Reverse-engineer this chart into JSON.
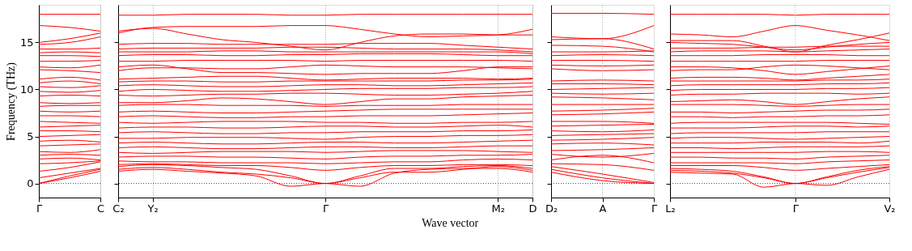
{
  "chart_data": [
    {
      "type": "line",
      "ylabel": "Frequency (THz)",
      "categories": [
        "Γ",
        null,
        "C"
      ],
      "ylim": [
        -1.5,
        19
      ],
      "yticks": [
        0,
        5,
        10,
        15
      ],
      "grid": "x",
      "ref_lines": [
        {
          "axis": "y",
          "value": 0,
          "color": "#0000ff",
          "line_style": "dotted"
        }
      ],
      "series": [
        {
          "color": "#ff0000",
          "values": [
            0,
            0.6,
            1.3
          ]
        },
        {
          "color": "#ff0000",
          "values": [
            0,
            0.8,
            1.5
          ]
        },
        {
          "color": "#ff0000",
          "values": [
            0.6,
            1.1,
            1.6
          ]
        },
        {
          "color": "#ff0000",
          "values": [
            1.3,
            1.7,
            2.3
          ]
        },
        {
          "color": "#ff0000",
          "values": [
            2.1,
            2.2,
            2.4
          ]
        },
        {
          "color": "#ff0000",
          "values": [
            2.6,
            2.7,
            2.5
          ]
        },
        {
          "color": "#ff0000",
          "values": [
            3.0,
            3.1,
            3.0
          ]
        },
        {
          "color": "#ff0000",
          "values": [
            3.4,
            3.3,
            3.6
          ]
        },
        {
          "color": "#ff0000",
          "values": [
            4.0,
            4.1,
            4.2
          ]
        },
        {
          "color": "#ff0000",
          "values": [
            4.5,
            4.6,
            4.4
          ]
        },
        {
          "color": "#ff0000",
          "values": [
            5.0,
            5.1,
            5.2
          ]
        },
        {
          "color": "#ff0000",
          "values": [
            5.6,
            5.6,
            5.5
          ]
        },
        {
          "color": "#ff0000",
          "values": [
            6.0,
            6.1,
            6.2
          ]
        },
        {
          "color": "#ff0000",
          "values": [
            6.6,
            6.5,
            6.4
          ]
        },
        {
          "color": "#ff0000",
          "values": [
            7.2,
            7.2,
            7.1
          ]
        },
        {
          "color": "#ff0000",
          "values": [
            7.7,
            7.6,
            7.7
          ]
        },
        {
          "color": "#ff0000",
          "values": [
            8.2,
            8.3,
            8.3
          ]
        },
        {
          "color": "#ff0000",
          "values": [
            8.6,
            8.5,
            8.6
          ]
        },
        {
          "color": "#ff0000",
          "values": [
            9.3,
            9.4,
            9.3
          ]
        },
        {
          "color": "#ff0000",
          "values": [
            9.8,
            9.7,
            9.9
          ]
        },
        {
          "color": "#ff0000",
          "values": [
            10.3,
            10.2,
            10.4
          ]
        },
        {
          "color": "#ff0000",
          "values": [
            10.7,
            10.9,
            10.6
          ]
        },
        {
          "color": "#ff0000",
          "values": [
            11.1,
            11.3,
            11.0
          ]
        },
        {
          "color": "#ff0000",
          "values": [
            12.1,
            12.0,
            11.8
          ]
        },
        {
          "color": "#ff0000",
          "values": [
            12.4,
            12.3,
            12.6
          ]
        },
        {
          "color": "#ff0000",
          "values": [
            13.0,
            13.0,
            13.1
          ]
        },
        {
          "color": "#ff0000",
          "values": [
            13.6,
            13.6,
            13.5
          ]
        },
        {
          "color": "#ff0000",
          "values": [
            13.9,
            14.0,
            13.9
          ]
        },
        {
          "color": "#ff0000",
          "values": [
            14.3,
            14.3,
            14.4
          ]
        },
        {
          "color": "#ff0000",
          "values": [
            14.8,
            15.0,
            15.6
          ]
        },
        {
          "color": "#ff0000",
          "values": [
            15.0,
            15.4,
            16.0
          ]
        },
        {
          "color": "#ff0000",
          "values": [
            16.8,
            16.6,
            16.2
          ]
        },
        {
          "color": "#ff0000",
          "values": [
            18.0,
            18.0,
            18.0
          ]
        }
      ]
    },
    {
      "type": "line",
      "xlabel": "Wave vector",
      "categories": [
        "C₂",
        "Y₂",
        null,
        null,
        null,
        null,
        "Γ",
        null,
        null,
        null,
        null,
        "M₂",
        "D"
      ],
      "ylim": [
        -1.5,
        19
      ],
      "yticks": [
        0,
        5,
        10,
        15
      ],
      "tick_labels": "x",
      "grid": "x",
      "ref_lines": [
        {
          "axis": "y",
          "value": 0,
          "color": "#0000ff",
          "line_style": "dotted"
        }
      ],
      "series": [
        {
          "color": "#ff0000",
          "values": [
            1.3,
            1.5,
            1.3,
            1.1,
            0.8,
            -0.3,
            0,
            -0.3,
            1.1,
            1.5,
            1.6,
            1.6,
            1.2
          ]
        },
        {
          "color": "#ff0000",
          "values": [
            1.5,
            1.7,
            1.5,
            1.2,
            1.0,
            0.6,
            0,
            0.6,
            1.2,
            1.2,
            1.5,
            1.8,
            1.4
          ]
        },
        {
          "color": "#ff0000",
          "values": [
            1.8,
            2.0,
            1.9,
            1.7,
            1.5,
            0.8,
            0,
            0.8,
            1.6,
            1.6,
            1.8,
            1.9,
            1.6
          ]
        },
        {
          "color": "#ff0000",
          "values": [
            2.0,
            2.1,
            2.0,
            1.9,
            1.9,
            1.7,
            1.4,
            1.7,
            1.9,
            1.9,
            2.0,
            2.0,
            1.9
          ]
        },
        {
          "color": "#ff0000",
          "values": [
            2.4,
            2.3,
            2.3,
            2.2,
            2.2,
            2.2,
            2.1,
            2.2,
            2.3,
            2.3,
            2.5,
            2.6,
            2.5
          ]
        },
        {
          "color": "#ff0000",
          "values": [
            2.8,
            2.9,
            2.9,
            2.8,
            2.8,
            2.7,
            2.6,
            2.8,
            2.9,
            2.9,
            3.0,
            3.0,
            3.1
          ]
        },
        {
          "color": "#ff0000",
          "values": [
            3.3,
            3.2,
            3.3,
            3.4,
            3.4,
            3.4,
            3.3,
            3.4,
            3.5,
            3.5,
            3.5,
            3.4,
            3.3
          ]
        },
        {
          "color": "#ff0000",
          "values": [
            3.8,
            3.9,
            3.8,
            3.7,
            3.7,
            3.8,
            3.9,
            3.9,
            3.8,
            3.8,
            3.9,
            4.0,
            4.0
          ]
        },
        {
          "color": "#ff0000",
          "values": [
            4.3,
            4.4,
            4.3,
            4.2,
            4.2,
            4.3,
            4.4,
            4.4,
            4.3,
            4.3,
            4.4,
            4.5,
            4.6
          ]
        },
        {
          "color": "#ff0000",
          "values": [
            4.8,
            4.8,
            4.9,
            4.9,
            4.9,
            4.8,
            4.7,
            4.9,
            5.0,
            5.0,
            5.1,
            5.1,
            5.2
          ]
        },
        {
          "color": "#ff0000",
          "values": [
            5.4,
            5.5,
            5.4,
            5.3,
            5.3,
            5.4,
            5.4,
            5.5,
            5.5,
            5.5,
            5.6,
            5.6,
            5.7
          ]
        },
        {
          "color": "#ff0000",
          "values": [
            5.9,
            6.0,
            6.0,
            5.9,
            5.9,
            6.0,
            6.1,
            6.1,
            6.0,
            6.0,
            6.1,
            6.2,
            6.0
          ]
        },
        {
          "color": "#ff0000",
          "values": [
            6.5,
            6.4,
            6.5,
            6.6,
            6.6,
            6.6,
            6.5,
            6.5,
            6.4,
            6.4,
            6.5,
            6.5,
            6.6
          ]
        },
        {
          "color": "#ff0000",
          "values": [
            7.1,
            7.2,
            7.1,
            7.0,
            7.0,
            7.1,
            7.1,
            7.2,
            7.2,
            7.2,
            7.3,
            7.4,
            7.5
          ]
        },
        {
          "color": "#ff0000",
          "values": [
            7.6,
            7.7,
            7.6,
            7.5,
            7.5,
            7.6,
            7.7,
            7.8,
            7.9,
            7.9,
            7.9,
            7.9,
            7.9
          ]
        },
        {
          "color": "#ff0000",
          "values": [
            8.3,
            8.4,
            8.4,
            8.3,
            8.3,
            8.3,
            8.2,
            8.3,
            8.3,
            8.3,
            8.4,
            8.4,
            8.4
          ]
        },
        {
          "color": "#ff0000",
          "values": [
            8.6,
            8.6,
            8.8,
            9.1,
            9.0,
            8.7,
            8.4,
            8.7,
            9.0,
            9.0,
            9.2,
            9.3,
            9.4
          ]
        },
        {
          "color": "#ff0000",
          "values": [
            9.4,
            9.3,
            9.4,
            9.5,
            9.5,
            9.6,
            9.6,
            9.5,
            9.4,
            9.4,
            9.5,
            9.6,
            9.8
          ]
        },
        {
          "color": "#ff0000",
          "values": [
            9.8,
            10.0,
            9.9,
            9.8,
            9.8,
            9.9,
            10.0,
            10.1,
            10.1,
            10.1,
            10.2,
            10.2,
            10.3
          ]
        },
        {
          "color": "#ff0000",
          "values": [
            10.4,
            10.5,
            10.4,
            10.3,
            10.3,
            10.4,
            10.5,
            10.5,
            10.4,
            10.4,
            10.5,
            10.6,
            10.7
          ]
        },
        {
          "color": "#ff0000",
          "values": [
            10.8,
            10.9,
            10.9,
            10.8,
            10.8,
            10.9,
            10.9,
            10.9,
            10.9,
            10.9,
            11.0,
            11.0,
            11.1
          ]
        },
        {
          "color": "#ff0000",
          "values": [
            11.1,
            11.2,
            11.3,
            11.4,
            11.4,
            11.2,
            11.0,
            11.1,
            11.2,
            11.2,
            11.2,
            11.1,
            11.2
          ]
        },
        {
          "color": "#ff0000",
          "values": [
            12.0,
            12.3,
            12.3,
            12.2,
            12.2,
            12.4,
            12.6,
            12.5,
            12.4,
            12.4,
            12.4,
            12.3,
            12.2
          ]
        },
        {
          "color": "#ff0000",
          "values": [
            12.4,
            12.6,
            12.2,
            11.8,
            11.8,
            11.7,
            11.6,
            11.7,
            11.7,
            11.7,
            12.0,
            12.4,
            12.4
          ]
        },
        {
          "color": "#ff0000",
          "values": [
            13.0,
            13.0,
            13.1,
            13.1,
            13.1,
            13.1,
            13.0,
            13.1,
            13.1,
            13.1,
            13.1,
            13.1,
            13.0
          ]
        },
        {
          "color": "#ff0000",
          "values": [
            13.6,
            13.7,
            13.7,
            13.6,
            13.6,
            13.7,
            13.7,
            13.8,
            13.8,
            13.8,
            13.7,
            13.6,
            13.6
          ]
        },
        {
          "color": "#ff0000",
          "values": [
            14.0,
            14.0,
            14.0,
            14.1,
            14.1,
            14.0,
            14.0,
            14.0,
            14.0,
            14.0,
            14.0,
            14.0,
            13.8
          ]
        },
        {
          "color": "#ff0000",
          "values": [
            14.3,
            14.4,
            14.4,
            14.4,
            14.4,
            14.5,
            14.5,
            14.4,
            14.3,
            14.3,
            14.3,
            14.2,
            14.0
          ]
        },
        {
          "color": "#ff0000",
          "values": [
            14.8,
            14.9,
            14.9,
            14.8,
            14.8,
            14.8,
            14.8,
            14.9,
            14.9,
            14.9,
            14.7,
            14.5,
            14.3
          ]
        },
        {
          "color": "#ff0000",
          "values": [
            16.2,
            16.5,
            15.9,
            15.3,
            15.0,
            14.6,
            14.2,
            15.0,
            15.7,
            15.9,
            15.9,
            15.8,
            15.8
          ]
        },
        {
          "color": "#ff0000",
          "values": [
            16.0,
            16.6,
            16.7,
            16.7,
            16.7,
            16.8,
            16.8,
            16.4,
            15.9,
            15.6,
            15.7,
            15.8,
            16.4
          ]
        },
        {
          "color": "#ff0000",
          "values": [
            17.9,
            17.9,
            18.0,
            18.0,
            18.0,
            17.9,
            17.9,
            18.0,
            18.0,
            18.0,
            18.0,
            18.0,
            18.0
          ]
        }
      ]
    },
    {
      "type": "line",
      "categories": [
        "D₂",
        "A",
        "Γ"
      ],
      "ylim": [
        -1.5,
        19
      ],
      "yticks": [
        0,
        5,
        10,
        15
      ],
      "tick_labels": "x",
      "ref_lines": [
        {
          "axis": "y",
          "value": 0,
          "color": "#0000ff",
          "line_style": "dotted"
        },
        {
          "axis": "x",
          "value": "A",
          "color": "#999999",
          "line_style": "dotted"
        }
      ],
      "series": [
        {
          "color": "#ff0000",
          "values": [
            1.2,
            0.3,
            0
          ]
        },
        {
          "color": "#ff0000",
          "values": [
            1.5,
            0.6,
            0
          ]
        },
        {
          "color": "#ff0000",
          "values": [
            1.8,
            1.0,
            0.1
          ]
        },
        {
          "color": "#ff0000",
          "values": [
            2.1,
            2.0,
            1.4
          ]
        },
        {
          "color": "#ff0000",
          "values": [
            2.5,
            3.0,
            2.2
          ]
        },
        {
          "color": "#ff0000",
          "values": [
            3.1,
            2.8,
            3.2
          ]
        },
        {
          "color": "#ff0000",
          "values": [
            3.5,
            3.6,
            3.8
          ]
        },
        {
          "color": "#ff0000",
          "values": [
            4.2,
            4.3,
            4.1
          ]
        },
        {
          "color": "#ff0000",
          "values": [
            4.6,
            4.7,
            4.9
          ]
        },
        {
          "color": "#ff0000",
          "values": [
            5.1,
            5.2,
            5.3
          ]
        },
        {
          "color": "#ff0000",
          "values": [
            5.6,
            5.5,
            5.7
          ]
        },
        {
          "color": "#ff0000",
          "values": [
            6.1,
            6.2,
            6.3
          ]
        },
        {
          "color": "#ff0000",
          "values": [
            6.6,
            6.6,
            6.4
          ]
        },
        {
          "color": "#ff0000",
          "values": [
            7.3,
            7.4,
            7.6
          ]
        },
        {
          "color": "#ff0000",
          "values": [
            7.7,
            7.8,
            8.0
          ]
        },
        {
          "color": "#ff0000",
          "values": [
            8.4,
            8.4,
            8.4
          ]
        },
        {
          "color": "#ff0000",
          "values": [
            9.2,
            9.1,
            8.9
          ]
        },
        {
          "color": "#ff0000",
          "values": [
            9.6,
            9.5,
            9.6
          ]
        },
        {
          "color": "#ff0000",
          "values": [
            10.0,
            10.1,
            10.2
          ]
        },
        {
          "color": "#ff0000",
          "values": [
            10.6,
            10.6,
            10.5
          ]
        },
        {
          "color": "#ff0000",
          "values": [
            10.9,
            11.0,
            10.9
          ]
        },
        {
          "color": "#ff0000",
          "values": [
            12.2,
            12.0,
            12.1
          ]
        },
        {
          "color": "#ff0000",
          "values": [
            12.6,
            12.5,
            12.6
          ]
        },
        {
          "color": "#ff0000",
          "values": [
            13.1,
            13.1,
            13.0
          ]
        },
        {
          "color": "#ff0000",
          "values": [
            13.6,
            13.7,
            13.6
          ]
        },
        {
          "color": "#ff0000",
          "values": [
            14.0,
            14.0,
            14.1
          ]
        },
        {
          "color": "#ff0000",
          "values": [
            14.7,
            14.6,
            14.0
          ]
        },
        {
          "color": "#ff0000",
          "values": [
            15.3,
            15.4,
            14.3
          ]
        },
        {
          "color": "#ff0000",
          "values": [
            15.6,
            15.4,
            16.8
          ]
        },
        {
          "color": "#ff0000",
          "values": [
            18.1,
            18.1,
            18.0
          ]
        }
      ]
    },
    {
      "type": "line",
      "categories": [
        "L₂",
        null,
        null,
        null,
        "Γ",
        null,
        null,
        "V₂"
      ],
      "ylim": [
        -1.5,
        19
      ],
      "yticks": [
        0,
        5,
        10,
        15
      ],
      "tick_labels": "x",
      "ref_lines": [
        {
          "axis": "y",
          "value": 0,
          "color": "#0000ff",
          "line_style": "dotted"
        },
        {
          "axis": "x",
          "value": "Γ",
          "color": "#999999",
          "line_style": "dotted"
        }
      ],
      "series": [
        {
          "color": "#ff0000",
          "values": [
            1.2,
            1.1,
            1.0,
            -0.4,
            0,
            -0.2,
            0.7,
            1.5
          ]
        },
        {
          "color": "#ff0000",
          "values": [
            1.4,
            1.3,
            1.1,
            0.6,
            0,
            0.6,
            1.2,
            1.7
          ]
        },
        {
          "color": "#ff0000",
          "values": [
            1.6,
            1.5,
            1.3,
            0.7,
            0,
            0.7,
            1.4,
            1.8
          ]
        },
        {
          "color": "#ff0000",
          "values": [
            1.9,
            1.9,
            1.9,
            1.7,
            1.4,
            1.6,
            1.8,
            2.0
          ]
        },
        {
          "color": "#ff0000",
          "values": [
            2.2,
            2.2,
            2.2,
            2.2,
            2.1,
            2.3,
            2.4,
            2.5
          ]
        },
        {
          "color": "#ff0000",
          "values": [
            2.8,
            2.8,
            2.7,
            2.7,
            2.6,
            2.8,
            2.9,
            3.0
          ]
        },
        {
          "color": "#ff0000",
          "values": [
            3.3,
            3.3,
            3.3,
            3.3,
            3.3,
            3.4,
            3.4,
            3.3
          ]
        },
        {
          "color": "#ff0000",
          "values": [
            3.8,
            3.8,
            3.7,
            3.8,
            3.9,
            3.9,
            3.9,
            4.0
          ]
        },
        {
          "color": "#ff0000",
          "values": [
            4.3,
            4.3,
            4.3,
            4.4,
            4.4,
            4.4,
            4.3,
            4.5
          ]
        },
        {
          "color": "#ff0000",
          "values": [
            4.8,
            4.9,
            4.9,
            4.8,
            4.7,
            4.8,
            4.9,
            5.0
          ]
        },
        {
          "color": "#ff0000",
          "values": [
            5.3,
            5.4,
            5.4,
            5.4,
            5.4,
            5.5,
            5.5,
            5.5
          ]
        },
        {
          "color": "#ff0000",
          "values": [
            5.9,
            5.9,
            5.9,
            6.0,
            6.1,
            6.1,
            6.0,
            6.1
          ]
        },
        {
          "color": "#ff0000",
          "values": [
            6.4,
            6.5,
            6.5,
            6.5,
            6.5,
            6.5,
            6.4,
            6.3
          ]
        },
        {
          "color": "#ff0000",
          "values": [
            7.1,
            7.1,
            7.0,
            7.1,
            7.1,
            7.2,
            7.2,
            7.3
          ]
        },
        {
          "color": "#ff0000",
          "values": [
            7.6,
            7.6,
            7.5,
            7.6,
            7.7,
            7.8,
            7.8,
            7.9
          ]
        },
        {
          "color": "#ff0000",
          "values": [
            8.4,
            8.4,
            8.4,
            8.3,
            8.2,
            8.3,
            8.4,
            8.4
          ]
        },
        {
          "color": "#ff0000",
          "values": [
            8.7,
            8.8,
            8.9,
            8.7,
            8.4,
            8.7,
            9.0,
            9.2
          ]
        },
        {
          "color": "#ff0000",
          "values": [
            9.4,
            9.5,
            9.5,
            9.6,
            9.6,
            9.6,
            9.5,
            9.6
          ]
        },
        {
          "color": "#ff0000",
          "values": [
            9.9,
            10.0,
            10.0,
            10.0,
            10.0,
            10.1,
            10.1,
            10.2
          ]
        },
        {
          "color": "#ff0000",
          "values": [
            10.4,
            10.5,
            10.5,
            10.5,
            10.5,
            10.6,
            10.6,
            10.7
          ]
        },
        {
          "color": "#ff0000",
          "values": [
            10.9,
            10.9,
            10.9,
            10.9,
            10.9,
            11.0,
            11.0,
            11.1
          ]
        },
        {
          "color": "#ff0000",
          "values": [
            11.2,
            11.3,
            11.3,
            11.2,
            11.0,
            11.2,
            11.4,
            11.6
          ]
        },
        {
          "color": "#ff0000",
          "values": [
            12.0,
            12.1,
            12.1,
            12.4,
            12.6,
            12.5,
            12.3,
            12.1
          ]
        },
        {
          "color": "#ff0000",
          "values": [
            12.4,
            12.4,
            12.3,
            12.0,
            11.6,
            11.9,
            12.2,
            12.5
          ]
        },
        {
          "color": "#ff0000",
          "values": [
            13.0,
            13.0,
            13.0,
            13.0,
            13.0,
            13.1,
            13.1,
            13.1
          ]
        },
        {
          "color": "#ff0000",
          "values": [
            13.6,
            13.6,
            13.6,
            13.7,
            13.7,
            13.7,
            13.6,
            13.6
          ]
        },
        {
          "color": "#ff0000",
          "values": [
            14.0,
            14.1,
            14.1,
            14.1,
            14.0,
            14.1,
            14.2,
            14.3
          ]
        },
        {
          "color": "#ff0000",
          "values": [
            14.4,
            14.4,
            14.4,
            14.5,
            14.5,
            14.6,
            14.6,
            14.6
          ]
        },
        {
          "color": "#ff0000",
          "values": [
            15.0,
            14.9,
            14.8,
            14.5,
            14.2,
            14.5,
            14.8,
            15.0
          ]
        },
        {
          "color": "#ff0000",
          "values": [
            15.2,
            15.2,
            15.2,
            14.6,
            14.0,
            14.7,
            15.3,
            16.0
          ]
        },
        {
          "color": "#ff0000",
          "values": [
            15.9,
            15.8,
            15.6,
            16.2,
            16.8,
            16.3,
            15.8,
            15.2
          ]
        },
        {
          "color": "#ff0000",
          "values": [
            18.0,
            18.0,
            18.0,
            18.0,
            17.9,
            18.0,
            18.0,
            18.0
          ]
        }
      ]
    }
  ]
}
